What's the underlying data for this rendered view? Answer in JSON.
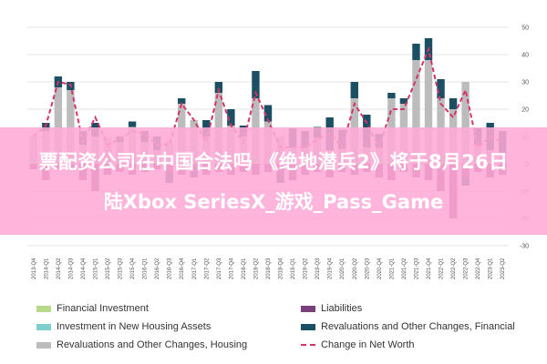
{
  "chart_data": {
    "type": "bar",
    "stacked": true,
    "ylim": [
      -30,
      50
    ],
    "y_ticks": [
      50,
      40,
      30,
      20,
      10,
      0,
      -10,
      -20,
      -30
    ],
    "grid": true,
    "legend_position": "bottom",
    "categories": [
      "2013-Q4",
      "2014-Q1",
      "2014-Q2",
      "2014-Q3",
      "2014-Q4",
      "2015-Q1",
      "2015-Q2",
      "2015-Q3",
      "2015-Q4",
      "2016-Q1",
      "2016-Q2",
      "2016-Q3",
      "2016-Q4",
      "2017-Q1",
      "2017-Q2",
      "2017-Q3",
      "2017-Q4",
      "2018-Q1",
      "2018-Q2",
      "2018-Q3",
      "2018-Q4",
      "2019-Q1",
      "2019-Q2",
      "2019-Q3",
      "2019-Q4",
      "2020-Q1",
      "2020-Q2",
      "2020-Q3",
      "2020-Q4",
      "2021-Q1",
      "2021-Q2",
      "2021-Q3",
      "2021-Q4",
      "2022-Q1",
      "2022-Q2",
      "2022-Q3",
      "2022-Q4",
      "2023-Q1",
      "2023-Q2"
    ],
    "series": [
      {
        "name": "Financial Investment",
        "color": "#b7d98b",
        "values": [
          1,
          1,
          1,
          1,
          1,
          1,
          0.5,
          1,
          0.5,
          1,
          1,
          1,
          1,
          1,
          1,
          1,
          1,
          1,
          1,
          0.5,
          1,
          1,
          1,
          0.5,
          1,
          0.5,
          1,
          1,
          1,
          1,
          1,
          1,
          1,
          1,
          1,
          1,
          1,
          1,
          1
        ]
      },
      {
        "name": "Investment in New Housing Assets",
        "color": "#7fcfcf",
        "values": [
          1,
          1,
          1,
          1,
          1,
          1,
          1,
          1,
          1,
          1,
          1,
          1,
          1,
          1,
          1,
          1,
          1,
          1,
          1,
          1,
          1,
          1,
          1,
          1,
          1,
          1,
          1,
          1,
          1,
          1,
          1,
          1,
          1,
          1,
          1,
          1,
          1,
          1,
          1
        ]
      },
      {
        "name": "Revaluations and Other Changes, Housing",
        "color": "#bcbcbc",
        "values": [
          8,
          10,
          26,
          25,
          5,
          8,
          8,
          6,
          12,
          6,
          3,
          6,
          20,
          14,
          8,
          24,
          12,
          8,
          22,
          14,
          8,
          4,
          4,
          8,
          3,
          4,
          22,
          4,
          4,
          22,
          20,
          36,
          36,
          22,
          18,
          28,
          5,
          3,
          2
        ]
      },
      {
        "name": "Liabilities",
        "color": "#7b3f7e",
        "values": [
          -2,
          -6,
          -2,
          -2,
          -6,
          -10,
          -4,
          -3,
          -4,
          -3,
          -2,
          -3,
          -4,
          -3,
          -4,
          -3,
          -4,
          -3,
          -4,
          -3,
          -4,
          -6,
          -4,
          -3,
          -5,
          -3,
          -4,
          -3,
          -5,
          -6,
          -3,
          -5,
          -6,
          -10,
          -20,
          -5,
          -3,
          -5,
          -4
        ]
      },
      {
        "name": "Revaluations and Other Changes, Financial",
        "color": "#1b4f63",
        "values": [
          0,
          3,
          4,
          3,
          5,
          5,
          0,
          2,
          2,
          4,
          5,
          -4,
          2,
          -2,
          6,
          4,
          6,
          4,
          10,
          6,
          -3,
          7,
          6,
          4,
          12,
          7,
          6,
          12,
          5,
          2,
          2,
          6,
          8,
          7,
          4,
          -3,
          6,
          10,
          8
        ]
      }
    ],
    "line": {
      "name": "Change in Net Worth",
      "color": "#d6336c",
      "values": [
        10,
        14,
        30,
        29,
        8,
        17,
        7,
        9,
        12,
        11,
        7,
        7,
        22,
        16,
        8,
        27,
        14,
        8,
        26,
        16,
        6,
        6,
        6,
        9,
        11,
        6,
        22,
        15,
        6,
        20,
        20,
        31,
        42,
        22,
        17,
        27,
        6,
        10,
        8
      ]
    }
  },
  "legend": [
    {
      "label": "Financial Investment",
      "color": "#b7d98b",
      "kind": "swatch"
    },
    {
      "label": "Liabilities",
      "color": "#7b3f7e",
      "kind": "swatch"
    },
    {
      "label": "Investment in New Housing Assets",
      "color": "#7fcfcf",
      "kind": "swatch"
    },
    {
      "label": "Revaluations and Other Changes, Financial",
      "color": "#1b4f63",
      "kind": "swatch"
    },
    {
      "label": "Revaluations and Other Changes, Housing",
      "color": "#bcbcbc",
      "kind": "swatch"
    },
    {
      "label": "Change in Net Worth",
      "color": "#d6336c",
      "kind": "line"
    }
  ],
  "banner": {
    "line1": "票配资公司在中国合法吗 《绝地潜兵2》将于8月26日",
    "line2": "陆Xbox SeriesX_游戏_Pass_Game"
  }
}
